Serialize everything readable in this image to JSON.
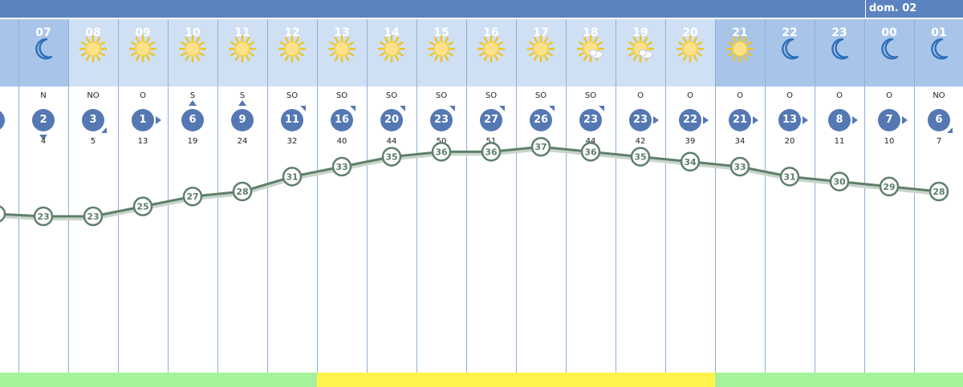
{
  "day_label": "dom. 02",
  "hours": [
    {
      "hour": "",
      "icon": "moon-icon",
      "dir": "",
      "wind": "",
      "gust": ""
    },
    {
      "hour": "07",
      "icon": "moon-icon",
      "dir": "N",
      "wind": "2",
      "gust": "4",
      "arrow": "down",
      "temp": "23"
    },
    {
      "hour": "08",
      "icon": "sun-icon",
      "dir": "NO",
      "wind": "3",
      "gust": "5",
      "arrow": "downright",
      "temp": "23"
    },
    {
      "hour": "09",
      "icon": "sun-icon",
      "dir": "O",
      "wind": "1",
      "gust": "13",
      "arrow": "right",
      "temp": "25"
    },
    {
      "hour": "10",
      "icon": "sun-icon",
      "dir": "S",
      "wind": "6",
      "gust": "19",
      "arrow": "up",
      "temp": "27"
    },
    {
      "hour": "11",
      "icon": "sun-icon",
      "dir": "S",
      "wind": "9",
      "gust": "24",
      "arrow": "up",
      "temp": "28"
    },
    {
      "hour": "12",
      "icon": "sun-icon",
      "dir": "SO",
      "wind": "11",
      "gust": "32",
      "arrow": "upright",
      "temp": "31"
    },
    {
      "hour": "13",
      "icon": "sun-icon",
      "dir": "SO",
      "wind": "16",
      "gust": "40",
      "arrow": "upright",
      "temp": "33"
    },
    {
      "hour": "14",
      "icon": "sun-icon",
      "dir": "SO",
      "wind": "20",
      "gust": "44",
      "arrow": "upright",
      "temp": "35"
    },
    {
      "hour": "15",
      "icon": "sun-icon",
      "dir": "SO",
      "wind": "23",
      "gust": "50",
      "arrow": "upright",
      "temp": "36"
    },
    {
      "hour": "16",
      "icon": "sun-icon",
      "dir": "SO",
      "wind": "27",
      "gust": "51",
      "arrow": "upright",
      "temp": "36"
    },
    {
      "hour": "17",
      "icon": "sun-icon",
      "dir": "SO",
      "wind": "26",
      "gust": "48",
      "arrow": "upright",
      "temp": "37"
    },
    {
      "hour": "18",
      "icon": "sun-cloud-icon",
      "dir": "SO",
      "wind": "23",
      "gust": "44",
      "arrow": "upright",
      "temp": "36"
    },
    {
      "hour": "19",
      "icon": "sun-cloud-icon",
      "dir": "O",
      "wind": "23",
      "gust": "42",
      "arrow": "right",
      "temp": "35"
    },
    {
      "hour": "20",
      "icon": "sun-icon",
      "dir": "O",
      "wind": "22",
      "gust": "39",
      "arrow": "right",
      "temp": "34"
    },
    {
      "hour": "21",
      "icon": "sun-icon",
      "dir": "O",
      "wind": "21",
      "gust": "34",
      "arrow": "right",
      "temp": "33"
    },
    {
      "hour": "22",
      "icon": "moon-icon",
      "dir": "O",
      "wind": "13",
      "gust": "20",
      "arrow": "right",
      "temp": "31"
    },
    {
      "hour": "23",
      "icon": "moon-icon",
      "dir": "O",
      "wind": "8",
      "gust": "11",
      "arrow": "right",
      "temp": "30"
    },
    {
      "hour": "00",
      "icon": "moon-icon",
      "dir": "O",
      "wind": "7",
      "gust": "10",
      "arrow": "right",
      "temp": "29"
    },
    {
      "hour": "01",
      "icon": "moon-icon",
      "dir": "NO",
      "wind": "6",
      "gust": "7",
      "arrow": "downright",
      "temp": "28"
    }
  ],
  "colors": {
    "header_day": "#cfe0f5",
    "header_night": "#a9c4e9",
    "wind_circle": "#5578b3",
    "temp_line": "#5e7f6a",
    "strip_green": "#a6f29a",
    "strip_yellow": "#fff24d"
  },
  "strip": [
    "green",
    "green",
    "green",
    "green",
    "green",
    "green",
    "green",
    "yellow",
    "yellow",
    "yellow",
    "yellow",
    "yellow",
    "yellow",
    "yellow",
    "yellow",
    "green",
    "green",
    "green",
    "green",
    "green"
  ]
}
